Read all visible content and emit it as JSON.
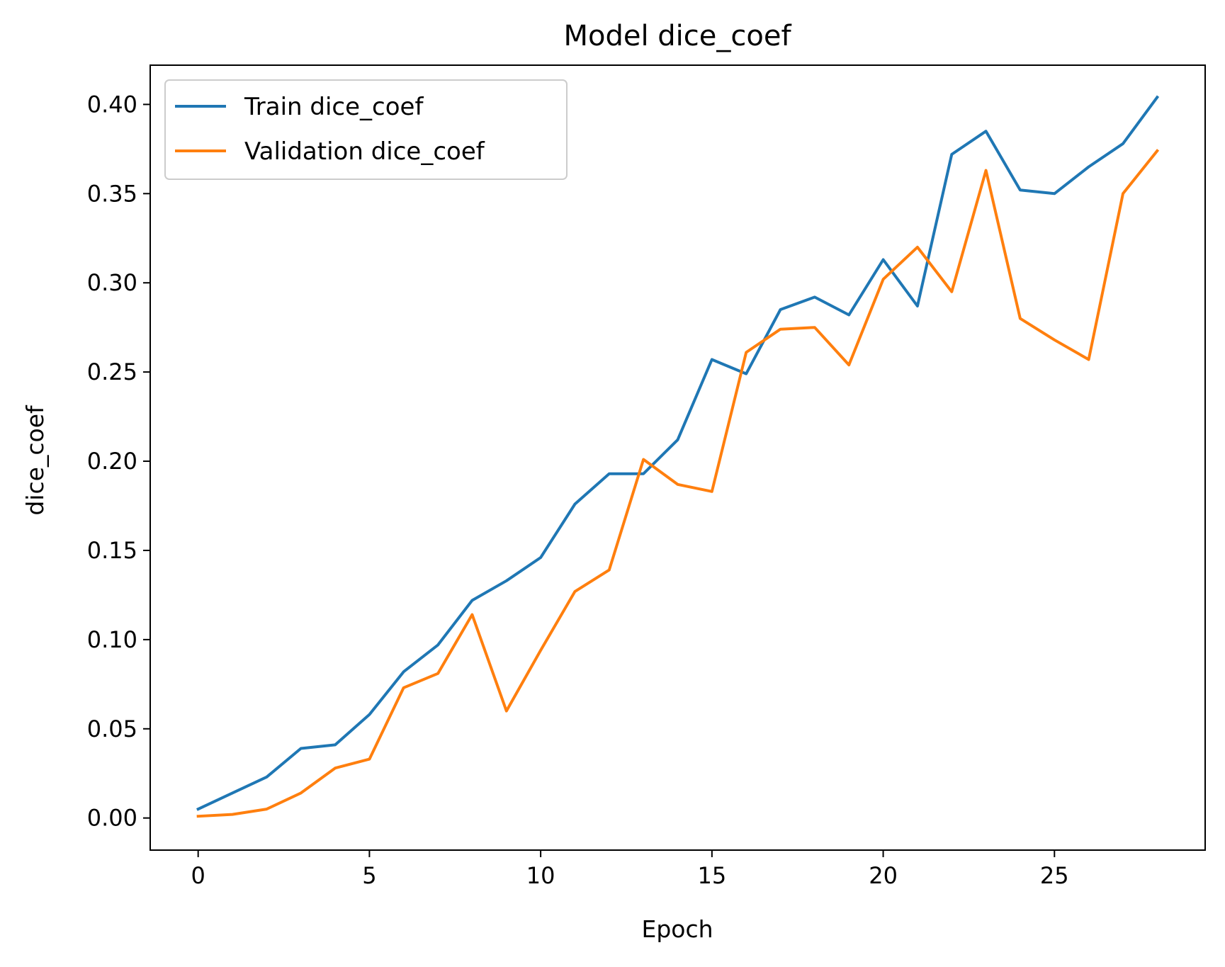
{
  "chart_data": {
    "type": "line",
    "title": "Model dice_coef",
    "xlabel": "Epoch",
    "ylabel": "dice_coef",
    "x": [
      0,
      1,
      2,
      3,
      4,
      5,
      6,
      7,
      8,
      9,
      10,
      11,
      12,
      13,
      14,
      15,
      16,
      17,
      18,
      19,
      20,
      21,
      22,
      23,
      24,
      25,
      26,
      27,
      28
    ],
    "xlim": [
      -1.4,
      29.4
    ],
    "ylim": [
      -0.018,
      0.422
    ],
    "xticks": [
      0,
      5,
      10,
      15,
      20,
      25
    ],
    "xtick_labels": [
      "0",
      "5",
      "10",
      "15",
      "20",
      "25"
    ],
    "yticks": [
      0.0,
      0.05,
      0.1,
      0.15,
      0.2,
      0.25,
      0.3,
      0.35,
      0.4
    ],
    "ytick_labels": [
      "0.00",
      "0.05",
      "0.10",
      "0.15",
      "0.20",
      "0.25",
      "0.30",
      "0.35",
      "0.40"
    ],
    "grid": false,
    "legend_position": "upper left",
    "series": [
      {
        "name": "Train dice_coef",
        "color": "#1f77b4",
        "values": [
          0.005,
          0.014,
          0.023,
          0.039,
          0.041,
          0.058,
          0.082,
          0.097,
          0.122,
          0.133,
          0.146,
          0.176,
          0.193,
          0.193,
          0.212,
          0.257,
          0.249,
          0.285,
          0.292,
          0.282,
          0.313,
          0.287,
          0.372,
          0.385,
          0.352,
          0.35,
          0.365,
          0.378,
          0.404
        ]
      },
      {
        "name": "Validation dice_coef",
        "color": "#ff7f0e",
        "values": [
          0.001,
          0.002,
          0.005,
          0.014,
          0.028,
          0.033,
          0.073,
          0.081,
          0.114,
          0.06,
          0.094,
          0.127,
          0.139,
          0.201,
          0.187,
          0.183,
          0.261,
          0.274,
          0.275,
          0.254,
          0.302,
          0.32,
          0.295,
          0.363,
          0.28,
          0.268,
          0.257,
          0.35,
          0.374
        ]
      }
    ]
  }
}
